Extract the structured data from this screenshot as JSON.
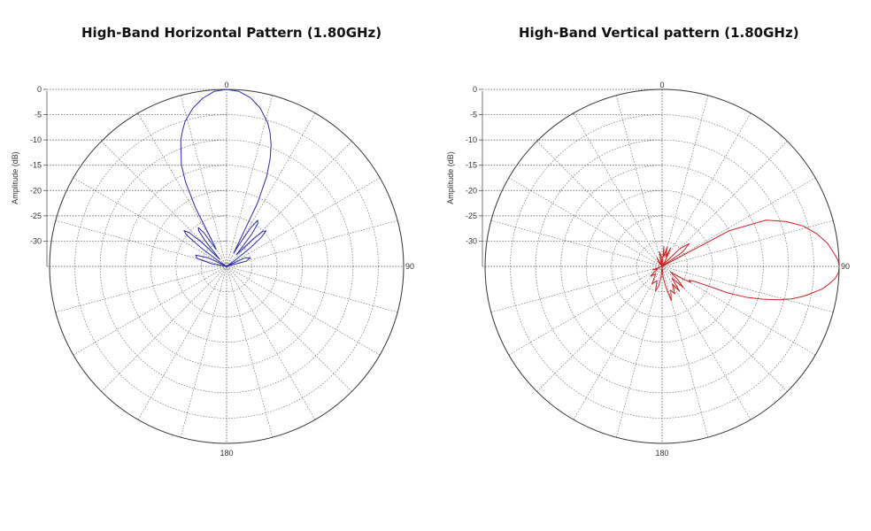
{
  "chart_data": [
    {
      "type": "polar",
      "title": "High-Band Horizontal Pattern (1.80GHz)",
      "ylabel": "Amplitude (dB)",
      "radial_ticks": [
        "0",
        "-5",
        "-10",
        "-15",
        "-20",
        "-25",
        "-30"
      ],
      "radial_values": [
        0,
        -5,
        -10,
        -15,
        -20,
        -25,
        -30
      ],
      "angle_labels": [
        "0",
        "90",
        "180"
      ],
      "angle_values": [
        0,
        90,
        180
      ],
      "rlim": [
        -35,
        0
      ],
      "grid": true,
      "color": "#2b2bb0",
      "series": [
        {
          "theta": [
            0,
            4,
            8,
            12,
            16,
            18,
            20,
            22,
            24,
            26,
            28,
            30,
            32,
            34,
            36,
            38,
            40,
            42,
            44,
            46,
            48,
            50,
            52,
            54,
            56,
            60,
            65,
            70,
            75,
            80,
            85,
            90,
            100,
            110,
            120,
            130,
            140,
            150,
            160,
            170,
            180,
            190,
            200,
            210,
            220,
            230,
            240,
            250,
            260,
            270,
            275,
            280,
            285,
            290,
            295,
            300,
            304,
            306,
            308,
            310,
            312,
            314,
            316,
            318,
            320,
            322,
            324,
            326,
            328,
            330,
            332,
            334,
            336,
            338,
            340,
            342,
            344,
            348,
            352,
            356,
            360
          ],
          "r": [
            0,
            -0.3,
            -1.3,
            -3,
            -5.5,
            -7.2,
            -9.3,
            -12,
            -15.5,
            -21,
            -32,
            -30,
            -26,
            -24,
            -24.5,
            -27,
            -32,
            -31,
            -27.5,
            -25,
            -24.5,
            -26,
            -29,
            -33,
            -35,
            -35,
            -31,
            -30,
            -31,
            -35,
            -35,
            -35,
            -35,
            -35,
            -35,
            -35,
            -35,
            -35,
            -35,
            -35,
            -35,
            -35,
            -35,
            -35,
            -35,
            -35,
            -35,
            -35,
            -35,
            -35,
            -35,
            -32,
            -29,
            -28.5,
            -31,
            -35,
            -33,
            -29,
            -25,
            -24,
            -25,
            -28,
            -33,
            -32,
            -28.5,
            -26,
            -25.5,
            -27,
            -31,
            -30,
            -22,
            -16.5,
            -13,
            -11,
            -8.5,
            -6.8,
            -5.2,
            -3,
            -1.4,
            -0.3,
            0
          ]
        }
      ]
    },
    {
      "type": "polar",
      "title": "High-Band Vertical pattern (1.80GHz)",
      "ylabel": "Amplitude (dB)",
      "radial_ticks": [
        "0",
        "-5",
        "-10",
        "-15",
        "-20",
        "-25",
        "-30"
      ],
      "radial_values": [
        0,
        -5,
        -10,
        -15,
        -20,
        -25,
        -30
      ],
      "angle_labels": [
        "0",
        "90",
        "180"
      ],
      "angle_values": [
        0,
        90,
        180
      ],
      "rlim": [
        -35,
        0
      ],
      "grid": true,
      "color": "#cc2222",
      "series": [
        {
          "theta": [
            0,
            5,
            10,
            15,
            20,
            25,
            30,
            35,
            40,
            45,
            50,
            55,
            58,
            62,
            66,
            70,
            74,
            78,
            82,
            86,
            88,
            90,
            92,
            94,
            96,
            98,
            100,
            102,
            104,
            106,
            108,
            110,
            112,
            113,
            115,
            117,
            119,
            121,
            125,
            130,
            135,
            140,
            145,
            150,
            155,
            160,
            165,
            170,
            175,
            180,
            185,
            190,
            195,
            200,
            210,
            220,
            230,
            240,
            250,
            260,
            270,
            280,
            290,
            300,
            310,
            320,
            330,
            340,
            345,
            350,
            355,
            360
          ],
          "r": [
            -35,
            -31,
            -33,
            -31,
            -33,
            -31,
            -34,
            -35,
            -34,
            -30,
            -28,
            -30,
            -35,
            -20,
            -12.5,
            -9,
            -6,
            -3.8,
            -2,
            -0.8,
            -0.2,
            0,
            -0.1,
            -0.7,
            -1.8,
            -3,
            -4.8,
            -6.5,
            -8.5,
            -11,
            -14,
            -17,
            -21,
            -25,
            -28,
            -29,
            -28.5,
            -30,
            -33,
            -31,
            -29,
            -32,
            -29,
            -31,
            -29,
            -30,
            -28,
            -31,
            -33,
            -35,
            -33,
            -31,
            -30,
            -32,
            -31,
            -33,
            -32,
            -34,
            -33,
            -35,
            -35,
            -35,
            -35,
            -35,
            -35,
            -34,
            -33,
            -35,
            -34,
            -32,
            -33,
            -35
          ]
        }
      ]
    }
  ]
}
